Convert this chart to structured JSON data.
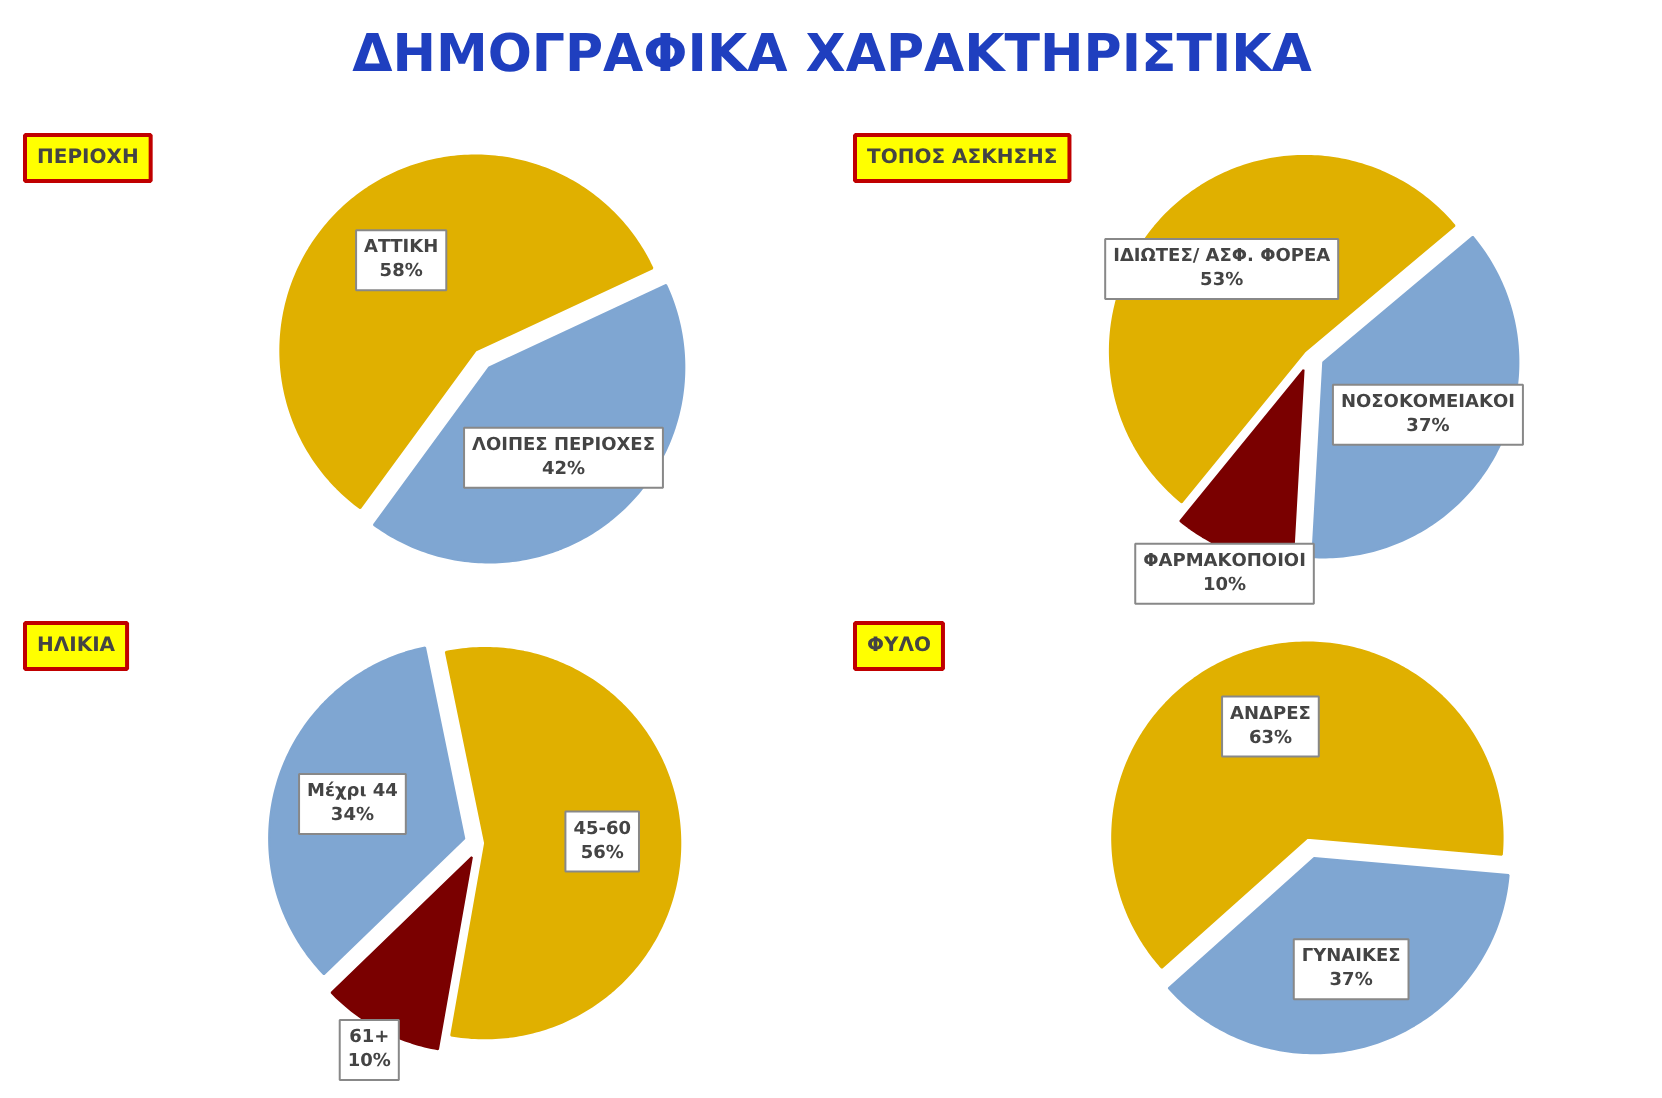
{
  "chart_data": [
    {
      "type": "other",
      "title": "ΔΗΜΟΓΡΑΦΙΚΑ ΧΑΡΑΚΤΗΡΙΣΤΙΚΑ"
    },
    {
      "type": "pie",
      "title": "ΠΕΡΙΟΧΗ",
      "categories": [
        "ΑΤΤΙΚΗ",
        "ΛΟΙΠΕΣ ΠΕΡΙΟΧΕΣ"
      ],
      "values": [
        58,
        42
      ],
      "value_labels": [
        "58%",
        "42%"
      ],
      "colors": [
        "#e0b000",
        "#7fa6d2"
      ]
    },
    {
      "type": "pie",
      "title": "ΤΟΠΟΣ ΑΣΚΗΣΗΣ",
      "categories": [
        "ΙΔΙΩΤΕΣ/ ΑΣΦ. ΦΟΡΕΑ",
        "ΦΑΡΜΑΚΟΠΟΙΟΙ",
        "ΝΟΣΟΚΟΜΕΙΑΚΟΙ"
      ],
      "values": [
        53,
        10,
        37
      ],
      "value_labels": [
        "53%",
        "10%",
        "37%"
      ],
      "colors": [
        "#e0b000",
        "#7a0000",
        "#7fa6d2"
      ]
    },
    {
      "type": "pie",
      "title": "ΗΛΙΚΙΑ",
      "categories": [
        "45-60",
        "Μέχρι 44",
        "61+"
      ],
      "values": [
        56,
        34,
        10
      ],
      "value_labels": [
        "56%",
        "34%",
        "10%"
      ],
      "colors": [
        "#e0b000",
        "#7fa6d2",
        "#7a0000"
      ]
    },
    {
      "type": "pie",
      "title": "ΦΥΛΟ",
      "categories": [
        "ΑΝΔΡΕΣ",
        "ΓΥΝΑΙΚΕΣ"
      ],
      "values": [
        63,
        37
      ],
      "value_labels": [
        "63%",
        "37%"
      ],
      "colors": [
        "#e0b000",
        "#7fa6d2"
      ]
    }
  ]
}
